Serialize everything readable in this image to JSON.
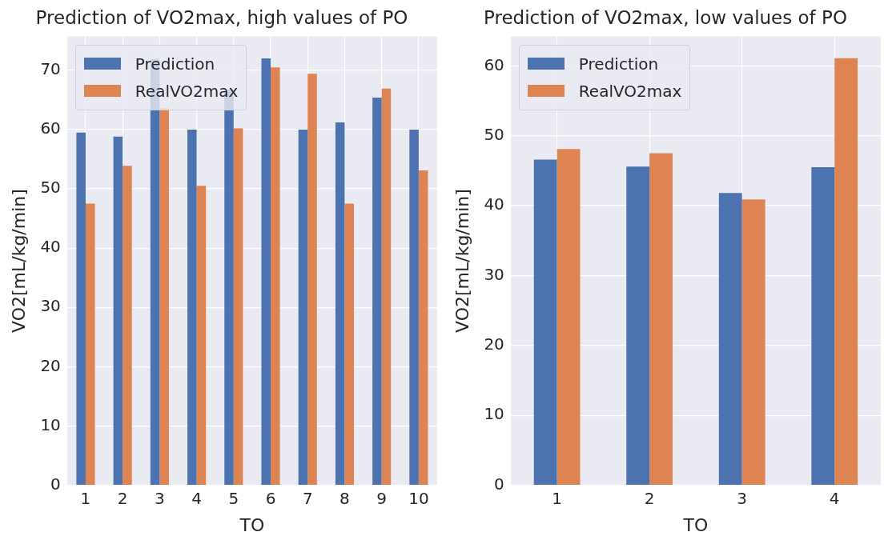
{
  "chart_data": [
    {
      "type": "bar",
      "title": "Prediction of VO2max, high values of PO",
      "xlabel": "TO",
      "ylabel": "VO2[mL/kg/min]",
      "categories": [
        "1",
        "2",
        "3",
        "4",
        "5",
        "6",
        "7",
        "8",
        "9",
        "10"
      ],
      "series": [
        {
          "name": "Prediction",
          "color": "#4c72b0",
          "values": [
            59.5,
            58.8,
            71.9,
            60.0,
            66.7,
            72.0,
            60.0,
            61.2,
            65.4,
            60.0
          ]
        },
        {
          "name": "RealVO2max",
          "color": "#dd8452",
          "values": [
            47.5,
            53.9,
            63.6,
            50.5,
            60.2,
            70.5,
            69.4,
            47.5,
            66.9,
            53.1
          ]
        }
      ],
      "ylim": [
        0,
        75.7
      ],
      "yticks": [
        0,
        10,
        20,
        30,
        40,
        50,
        60,
        70
      ],
      "grid": true,
      "legend": "top left"
    },
    {
      "type": "bar",
      "title": "Prediction of VO2max, low values of PO",
      "xlabel": "TO",
      "ylabel": "VO2[mL/kg/min]",
      "categories": [
        "1",
        "2",
        "3",
        "4"
      ],
      "series": [
        {
          "name": "Prediction",
          "color": "#4c72b0",
          "values": [
            46.6,
            45.6,
            41.8,
            45.5
          ]
        },
        {
          "name": "RealVO2max",
          "color": "#dd8452",
          "values": [
            48.1,
            47.5,
            40.9,
            61.1
          ]
        }
      ],
      "ylim": [
        0,
        64.2
      ],
      "yticks": [
        0,
        10,
        20,
        30,
        40,
        50,
        60
      ],
      "grid": true,
      "legend": "top left"
    }
  ]
}
